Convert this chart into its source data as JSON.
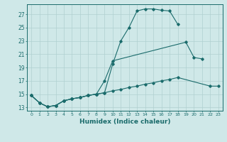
{
  "xlabel": "Humidex (Indice chaleur)",
  "background_color": "#cfe8e8",
  "grid_color": "#b0d0d0",
  "line_color": "#1a6b6b",
  "x_ticks": [
    0,
    1,
    2,
    3,
    4,
    5,
    6,
    7,
    8,
    9,
    10,
    11,
    12,
    13,
    14,
    15,
    16,
    17,
    18,
    19,
    20,
    21,
    22,
    23
  ],
  "y_ticks": [
    13,
    15,
    17,
    19,
    21,
    23,
    25,
    27
  ],
  "ylim": [
    12.5,
    28.5
  ],
  "xlim": [
    -0.5,
    23.5
  ],
  "s1_x": [
    0,
    1,
    2,
    3,
    4,
    5,
    6,
    7,
    8,
    9,
    10,
    11,
    12,
    13,
    14,
    15,
    16,
    17,
    18
  ],
  "s1_y": [
    14.8,
    13.7,
    13.1,
    13.3,
    14.0,
    14.3,
    14.5,
    14.8,
    15.0,
    15.2,
    19.5,
    23.0,
    25.0,
    27.5,
    27.8,
    27.8,
    27.6,
    27.5,
    25.5
  ],
  "s2_x": [
    0,
    1,
    2,
    3,
    4,
    5,
    6,
    7,
    8,
    9,
    10,
    19,
    20,
    21
  ],
  "s2_y": [
    14.8,
    13.7,
    13.1,
    13.3,
    14.0,
    14.3,
    14.5,
    14.8,
    15.0,
    17.0,
    20.0,
    22.8,
    20.5,
    20.3
  ],
  "s3_x": [
    0,
    1,
    2,
    3,
    4,
    5,
    6,
    7,
    8,
    9,
    10,
    11,
    12,
    13,
    14,
    15,
    16,
    17,
    18,
    22,
    23
  ],
  "s3_y": [
    14.8,
    13.7,
    13.1,
    13.3,
    14.0,
    14.3,
    14.5,
    14.8,
    15.0,
    15.2,
    15.5,
    15.7,
    16.0,
    16.2,
    16.5,
    16.7,
    17.0,
    17.2,
    17.5,
    16.2,
    16.2
  ]
}
